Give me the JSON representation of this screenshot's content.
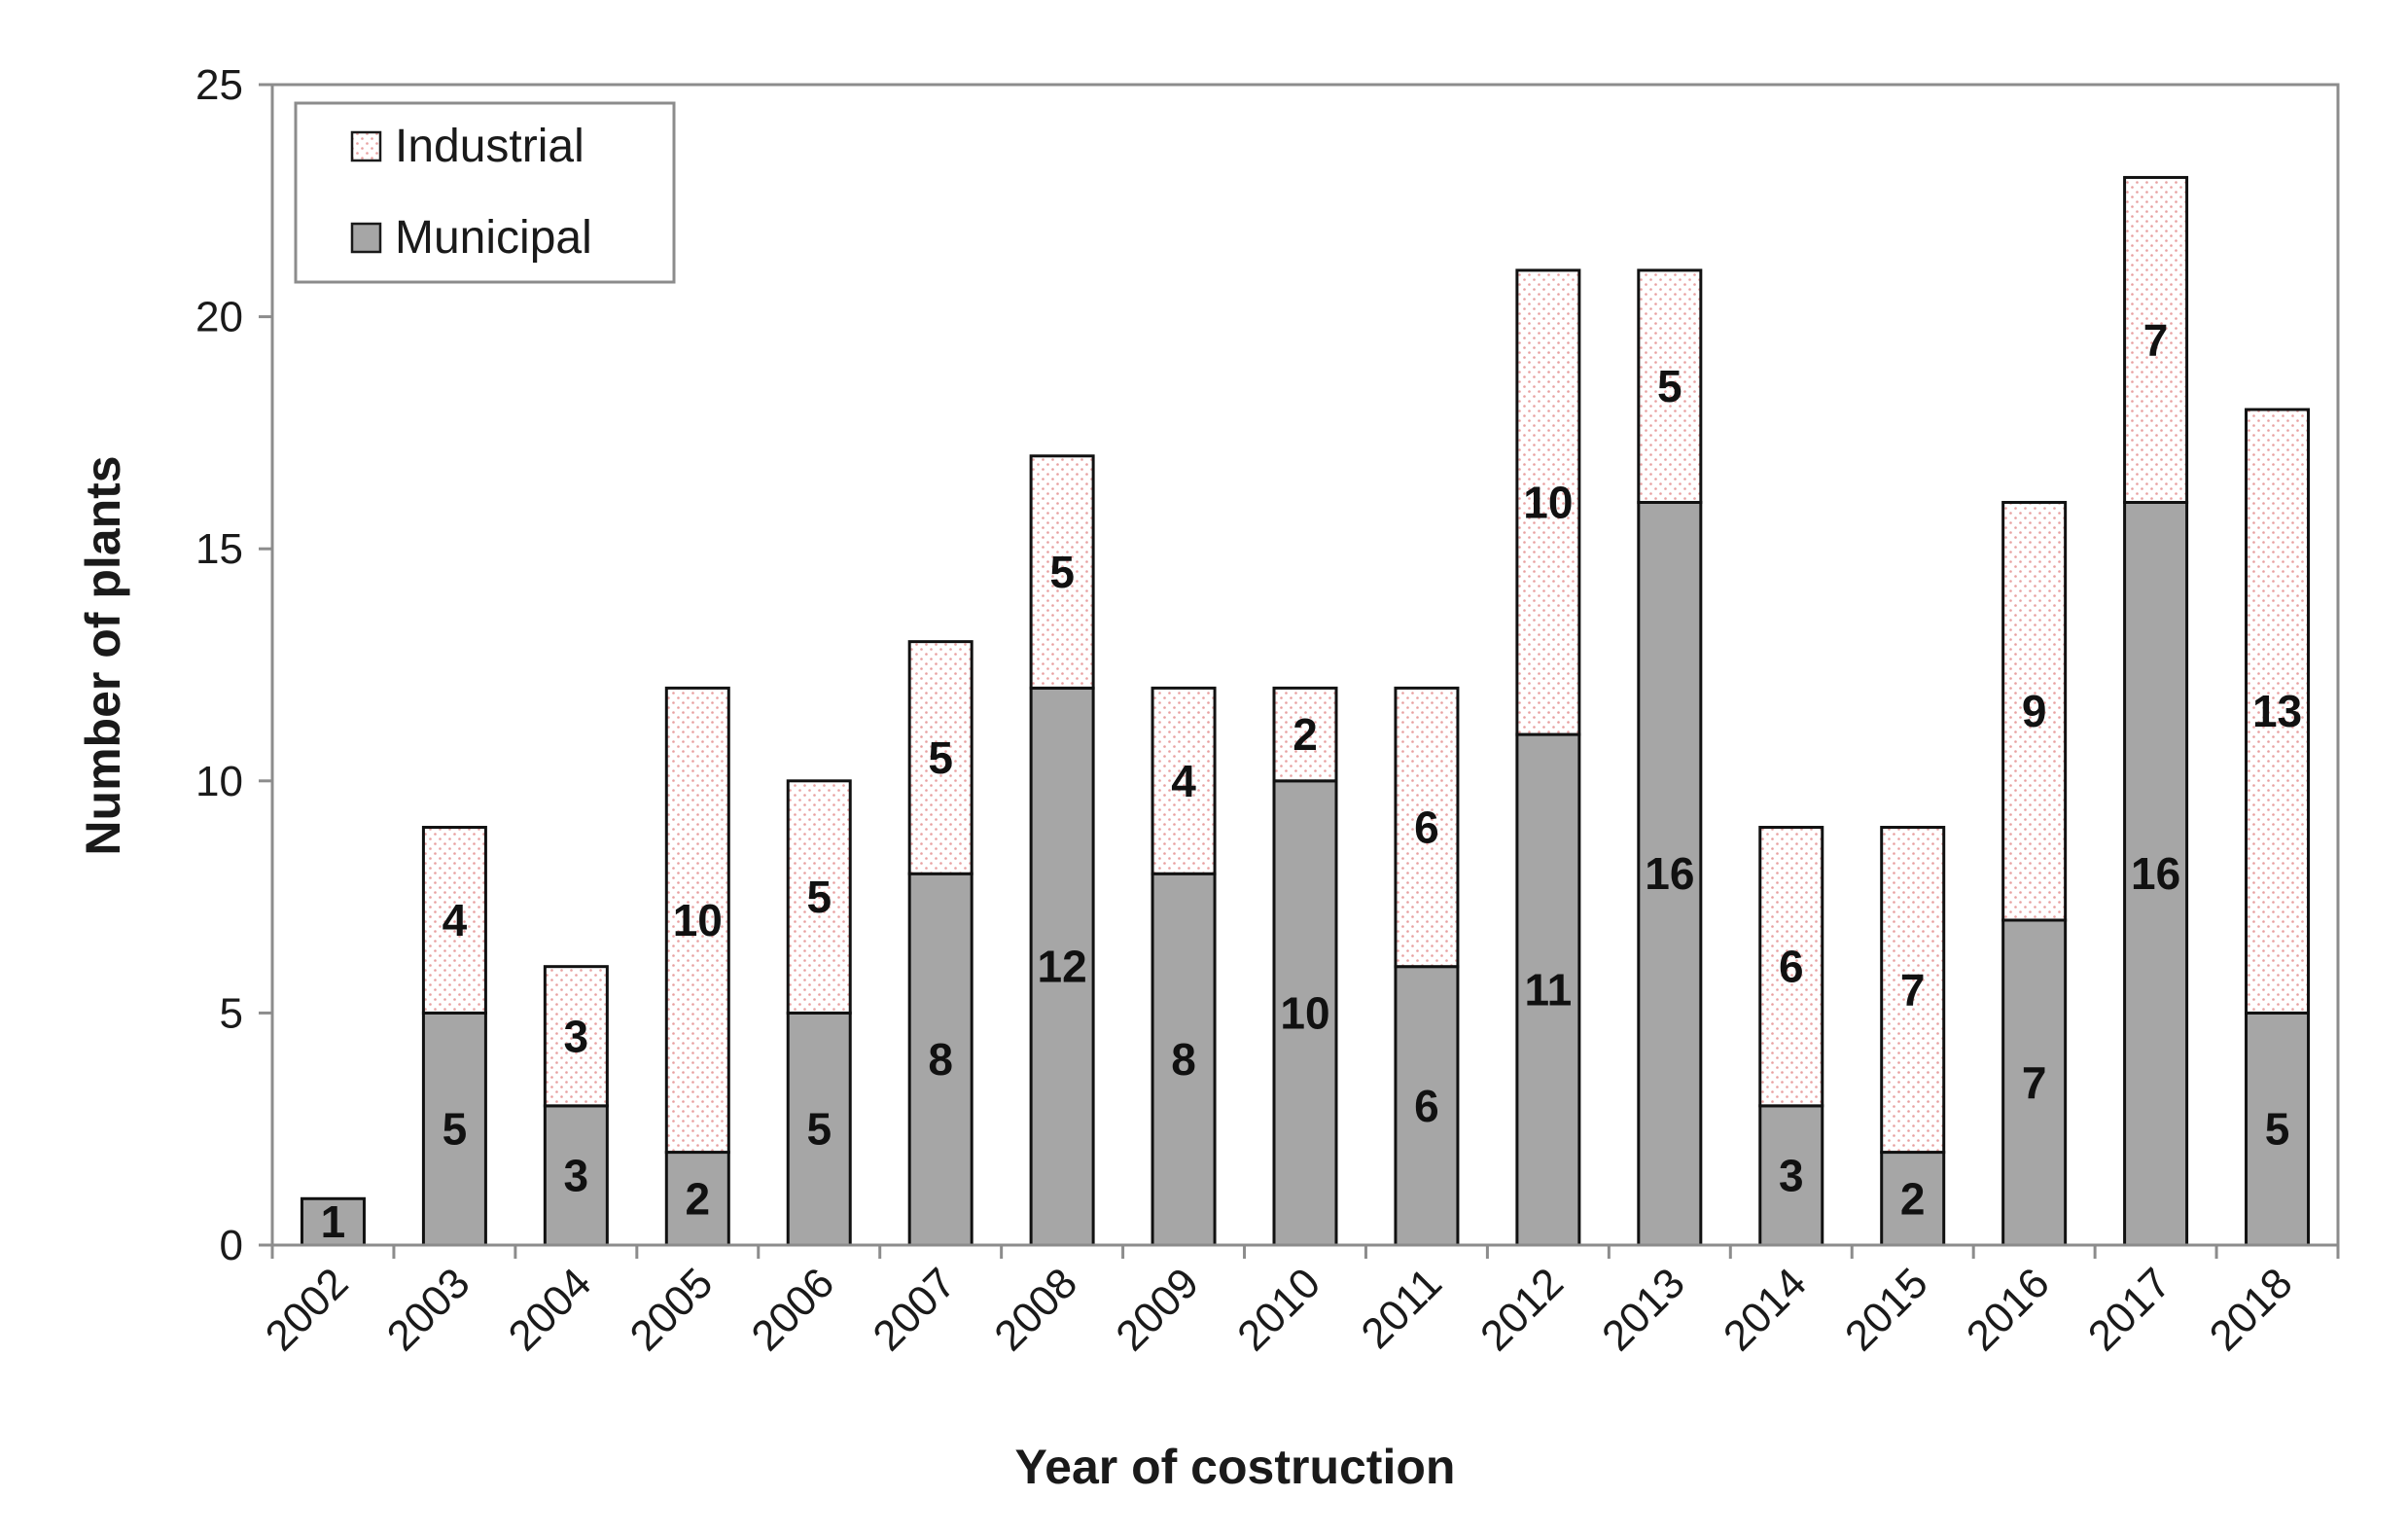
{
  "chart_data": {
    "type": "bar",
    "stacked": true,
    "title": "",
    "xlabel": "Year of costruction",
    "ylabel": "Number of plants",
    "ylim": [
      0,
      25
    ],
    "yticks": [
      "0",
      "5",
      "10",
      "15",
      "20",
      "25"
    ],
    "ytick_values": [
      0,
      5,
      10,
      15,
      20,
      25
    ],
    "categories": [
      "2002",
      "2003",
      "2004",
      "2005",
      "2006",
      "2007",
      "2008",
      "2009",
      "2010",
      "2011",
      "2012",
      "2013",
      "2014",
      "2015",
      "2016",
      "2017",
      "2018"
    ],
    "series": [
      {
        "name": "Municipal",
        "color": "#a6a6a6",
        "values": [
          1,
          5,
          3,
          2,
          5,
          8,
          12,
          8,
          10,
          6,
          11,
          16,
          3,
          2,
          7,
          16,
          5
        ]
      },
      {
        "name": "Industrial",
        "color": "#ffffff",
        "dot_color": "#e8a0a0",
        "values": [
          0,
          4,
          3,
          10,
          5,
          5,
          5,
          4,
          2,
          6,
          10,
          5,
          6,
          7,
          9,
          7,
          13
        ]
      }
    ],
    "legend": {
      "position": "top-left",
      "order": [
        "Industrial",
        "Municipal"
      ]
    }
  }
}
